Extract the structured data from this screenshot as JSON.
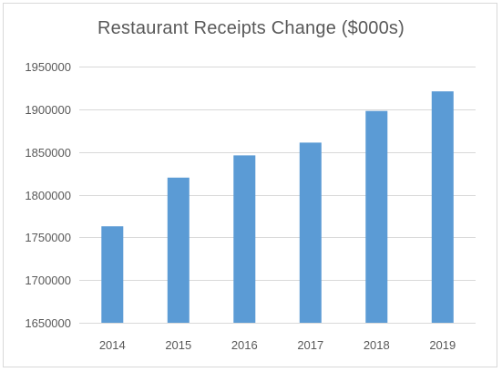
{
  "chart_data": {
    "type": "bar",
    "title": "Restaurant Receipts Change ($000s)",
    "xlabel": "",
    "ylabel": "",
    "categories": [
      "2014",
      "2015",
      "2016",
      "2017",
      "2018",
      "2019"
    ],
    "values": [
      1763000,
      1820000,
      1846000,
      1861000,
      1898000,
      1921000
    ],
    "ylim": [
      1650000,
      1950000
    ],
    "yticks": [
      1650000,
      1700000,
      1750000,
      1800000,
      1850000,
      1900000,
      1950000
    ],
    "grid": true,
    "legend": "none",
    "bar_color": "#5b9bd5",
    "grid_color": "#d9d9d9"
  }
}
